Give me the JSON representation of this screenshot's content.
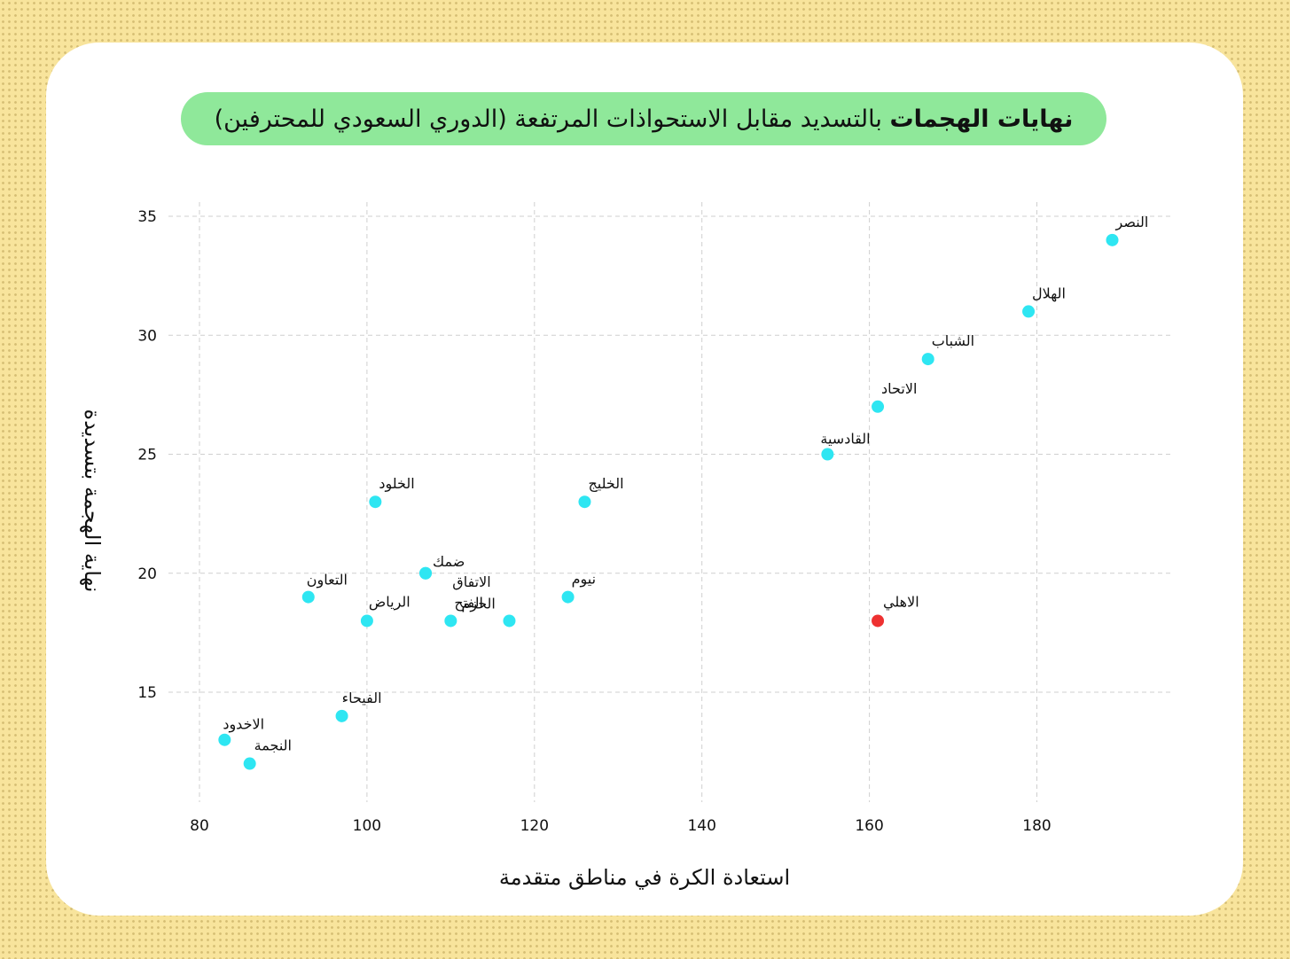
{
  "title": {
    "bold": "نهايات الهجمات",
    "rest": "بالتسديد مقابل الاستحواذات المرتفعة (الدوري السعودي للمحترفين)"
  },
  "chart_data": {
    "type": "scatter",
    "title": "نهايات الهجمات بالتسديد مقابل الاستحواذات المرتفعة (الدوري السعودي للمحترفين)",
    "xlabel": "استعادة الكرة في مناطق متقدمة",
    "ylabel": "نهاية الهجمة بتسديدة",
    "xlim": [
      80,
      190
    ],
    "ylim": [
      10,
      35
    ],
    "xticks": [
      80,
      100,
      120,
      140,
      160,
      180
    ],
    "yticks": [
      15,
      20,
      25,
      30,
      35
    ],
    "grid": true,
    "colors": {
      "default": "#2ee6f2",
      "highlight": "#ee3131"
    },
    "points": [
      {
        "label": "النصر",
        "x": 189,
        "y": 34
      },
      {
        "label": "الهلال",
        "x": 179,
        "y": 31
      },
      {
        "label": "الشباب",
        "x": 167,
        "y": 29
      },
      {
        "label": "الاتحاد",
        "x": 161,
        "y": 27
      },
      {
        "label": "القادسية",
        "x": 155,
        "y": 25
      },
      {
        "label": "الخليج",
        "x": 126,
        "y": 23
      },
      {
        "label": "الخلود",
        "x": 101,
        "y": 23
      },
      {
        "label": "ضمك",
        "x": 107,
        "y": 20
      },
      {
        "label": "الاتفاق",
        "x": 107,
        "y": 20
      },
      {
        "label": "نيوم",
        "x": 124,
        "y": 19
      },
      {
        "label": "التعاون",
        "x": 93,
        "y": 19
      },
      {
        "label": "الرياض",
        "x": 100,
        "y": 18
      },
      {
        "label": "الفتح",
        "x": 110,
        "y": 18
      },
      {
        "label": "الحزم",
        "x": 117,
        "y": 18
      },
      {
        "label": "الاهلي",
        "x": 161,
        "y": 18,
        "highlight": true
      },
      {
        "label": "الفيحاء",
        "x": 97,
        "y": 14
      },
      {
        "label": "الاخدود",
        "x": 83,
        "y": 13
      },
      {
        "label": "النجمة",
        "x": 86,
        "y": 12
      }
    ]
  }
}
